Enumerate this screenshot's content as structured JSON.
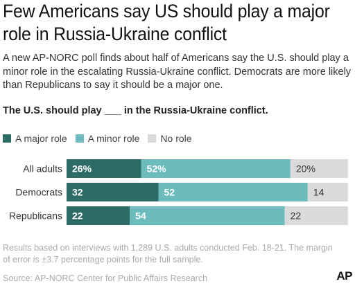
{
  "headline": "Few Americans say US should play a major role in Russia-Ukraine conflict",
  "subtitle": "A new AP-NORC poll finds about half of Americans say the U.S. should play a minor role in the escalating Russia-Ukraine conflict. Democrats are more likely than Republicans to say it should be a major one.",
  "question": "The U.S. should play ___ in the Russia-Ukraine conflict.",
  "colors": {
    "major": "#2d6b67",
    "minor": "#6cbcbd",
    "none": "#dadada"
  },
  "chart_data": {
    "type": "bar",
    "orientation": "horizontal",
    "stacked": true,
    "categories": [
      "All adults",
      "Democrats",
      "Republicans"
    ],
    "series": [
      {
        "name": "A major role",
        "values": [
          26,
          32,
          22
        ],
        "labels": [
          "26%",
          "32",
          "22"
        ]
      },
      {
        "name": "A minor role",
        "values": [
          52,
          52,
          54
        ],
        "labels": [
          "52%",
          "52",
          "54"
        ]
      },
      {
        "name": "No role",
        "values": [
          20,
          14,
          22
        ],
        "labels": [
          "20%",
          "14",
          "22"
        ]
      }
    ],
    "xlim": [
      0,
      100
    ],
    "legend": "top-left",
    "grid": false
  },
  "footnote": "Results based on interviews with 1,289 U.S. adults conducted Feb. 18-21. The margin of error is ±3.7 percentage points for the full sample.",
  "source": "Source: AP-NORC Center for Public Affairs Research",
  "logo": "AP"
}
